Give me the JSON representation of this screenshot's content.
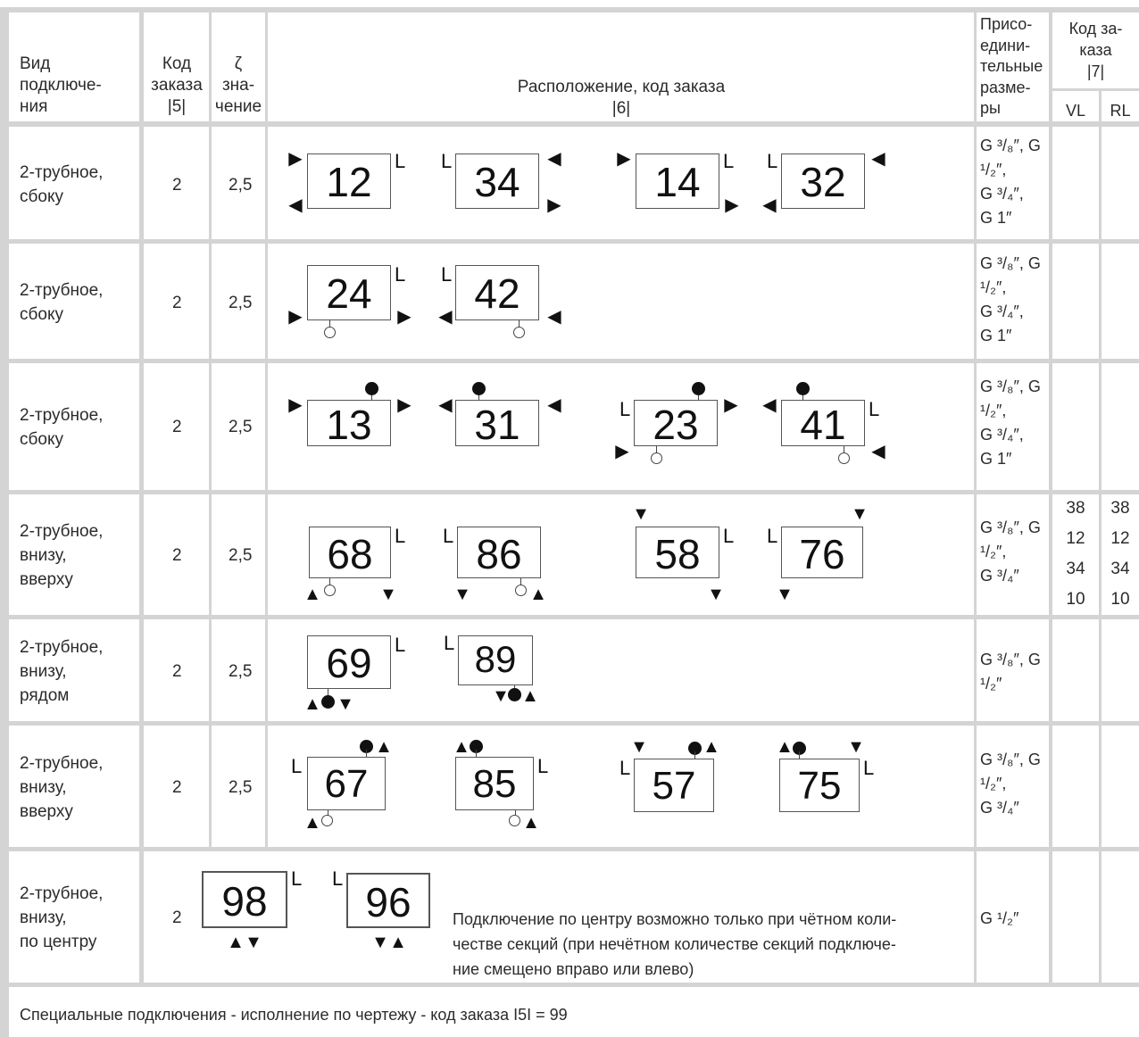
{
  "header": {
    "col1": "Вид\nподключе-\nния",
    "col2": "Код\nзаказа\n|5|",
    "col3": "ζ\nзна-\nчение",
    "col4": "Расположение, код заказа\n|6|",
    "col5": "Присо-\nедини-\nтельные\nразме-\nры",
    "col6": "Код за-\nказа\n|7|",
    "col6a": "VL",
    "col6b": "RL"
  },
  "rows": [
    {
      "type": "2-трубное,\nсбоку",
      "code": "2",
      "zeta": "2,5",
      "sizes": [
        "G ³/₈″, G ¹/₂″,",
        "G ³/₄″,",
        "G 1″"
      ]
    },
    {
      "type": "2-трубное,\nсбоку",
      "code": "2",
      "zeta": "2,5",
      "sizes": [
        "G ³/₈″, G ¹/₂″,",
        "G ³/₄″,",
        "G 1″"
      ]
    },
    {
      "type": "2-трубное,\nсбоку",
      "code": "2",
      "zeta": "2,5",
      "sizes": [
        "G ³/₈″, G ¹/₂″,",
        "G ³/₄″,",
        "G 1″"
      ]
    },
    {
      "type": "2-трубное,\nвнизу,\nвверху",
      "code": "2",
      "zeta": "2,5",
      "sizes": [
        "G ³/₈″, G ¹/₂″,",
        "G ³/₄″"
      ]
    },
    {
      "type": "2-трубное,\nвнизу,\nрядом",
      "code": "2",
      "zeta": "2,5",
      "sizes": [
        "G ³/₈″, G ¹/₂″"
      ]
    },
    {
      "type": "2-трубное,\nвнизу,\nвверху",
      "code": "2",
      "zeta": "2,5",
      "sizes": [
        "G ³/₈″, G ¹/₂″,",
        "G ³/₄″"
      ]
    },
    {
      "type": "2-трубное,\nвнизу,\nпо центру",
      "code": "2",
      "zeta": "",
      "sizes": [
        "G ¹/₂″"
      ]
    }
  ],
  "codes": [
    "12",
    "34",
    "14",
    "32",
    "24",
    "42",
    "13",
    "31",
    "23",
    "41",
    "68",
    "86",
    "58",
    "76",
    "69",
    "89",
    "67",
    "85",
    "57",
    "75",
    "98",
    "96"
  ],
  "order7": {
    "vl": [
      "38",
      "12",
      "34",
      "10"
    ],
    "rl": [
      "38",
      "12",
      "34",
      "10"
    ]
  },
  "center_note": "Подключение по центру возможно только при чётном коли-\nчестве секций (при нечётном количестве секций подключе-\nние смещено вправо или влево)",
  "footer": "Специальные подключения - исполнение по чертежу - код заказа I5I = 99",
  "L_label": "L",
  "colors": {
    "grid": "#cfcfcf",
    "text": "#2b2b2b",
    "mark": "#111111"
  }
}
